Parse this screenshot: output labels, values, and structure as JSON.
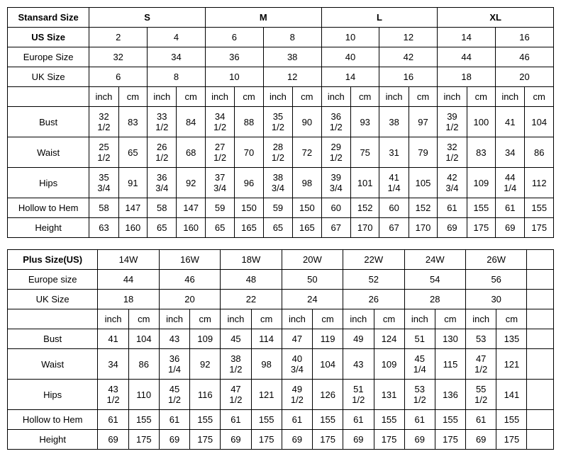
{
  "standard": {
    "title": "Stansard Size",
    "group_labels": [
      "S",
      "M",
      "L",
      "XL"
    ],
    "row_label_us": "US Size",
    "us_sizes": [
      "2",
      "4",
      "6",
      "8",
      "10",
      "12",
      "14",
      "16"
    ],
    "row_label_eu": "Europe Size",
    "eu_sizes": [
      "32",
      "34",
      "36",
      "38",
      "40",
      "42",
      "44",
      "46"
    ],
    "row_label_uk": "UK Size",
    "uk_sizes": [
      "6",
      "8",
      "10",
      "12",
      "14",
      "16",
      "18",
      "20"
    ],
    "unit_inch": "inch",
    "unit_cm": "cm",
    "measurements": [
      {
        "label": "Bust",
        "vals": [
          "32 1/2",
          "83",
          "33 1/2",
          "84",
          "34 1/2",
          "88",
          "35 1/2",
          "90",
          "36 1/2",
          "93",
          "38",
          "97",
          "39 1/2",
          "100",
          "41",
          "104"
        ]
      },
      {
        "label": "Waist",
        "vals": [
          "25 1/2",
          "65",
          "26 1/2",
          "68",
          "27 1/2",
          "70",
          "28 1/2",
          "72",
          "29 1/2",
          "75",
          "31",
          "79",
          "32 1/2",
          "83",
          "34",
          "86"
        ]
      },
      {
        "label": "Hips",
        "vals": [
          "35 3/4",
          "91",
          "36 3/4",
          "92",
          "37 3/4",
          "96",
          "38 3/4",
          "98",
          "39 3/4",
          "101",
          "41 1/4",
          "105",
          "42 3/4",
          "109",
          "44 1/4",
          "112"
        ]
      },
      {
        "label": "Hollow to Hem",
        "vals": [
          "58",
          "147",
          "58",
          "147",
          "59",
          "150",
          "59",
          "150",
          "60",
          "152",
          "60",
          "152",
          "61",
          "155",
          "61",
          "155"
        ]
      },
      {
        "label": "Height",
        "vals": [
          "63",
          "160",
          "65",
          "160",
          "65",
          "165",
          "65",
          "165",
          "67",
          "170",
          "67",
          "170",
          "69",
          "175",
          "69",
          "175"
        ]
      }
    ]
  },
  "plus": {
    "title": "Plus Size(US)",
    "us_sizes": [
      "14W",
      "16W",
      "18W",
      "20W",
      "22W",
      "24W",
      "26W"
    ],
    "row_label_eu": "Europe size",
    "eu_sizes": [
      "44",
      "46",
      "48",
      "50",
      "52",
      "54",
      "56"
    ],
    "row_label_uk": "UK Size",
    "uk_sizes": [
      "18",
      "20",
      "22",
      "24",
      "26",
      "28",
      "30"
    ],
    "unit_inch": "inch",
    "unit_cm": "cm",
    "measurements": [
      {
        "label": "Bust",
        "vals": [
          "41",
          "104",
          "43",
          "109",
          "45",
          "114",
          "47",
          "119",
          "49",
          "124",
          "51",
          "130",
          "53",
          "135"
        ]
      },
      {
        "label": "Waist",
        "vals": [
          "34",
          "86",
          "36 1/4",
          "92",
          "38 1/2",
          "98",
          "40 3/4",
          "104",
          "43",
          "109",
          "45 1/4",
          "115",
          "47 1/2",
          "121"
        ]
      },
      {
        "label": "Hips",
        "vals": [
          "43 1/2",
          "110",
          "45 1/2",
          "116",
          "47 1/2",
          "121",
          "49 1/2",
          "126",
          "51 1/2",
          "131",
          "53 1/2",
          "136",
          "55 1/2",
          "141"
        ]
      },
      {
        "label": "Hollow to Hem",
        "vals": [
          "61",
          "155",
          "61",
          "155",
          "61",
          "155",
          "61",
          "155",
          "61",
          "155",
          "61",
          "155",
          "61",
          "155"
        ]
      },
      {
        "label": "Height",
        "vals": [
          "69",
          "175",
          "69",
          "175",
          "69",
          "175",
          "69",
          "175",
          "69",
          "175",
          "69",
          "175",
          "69",
          "175"
        ]
      }
    ]
  }
}
